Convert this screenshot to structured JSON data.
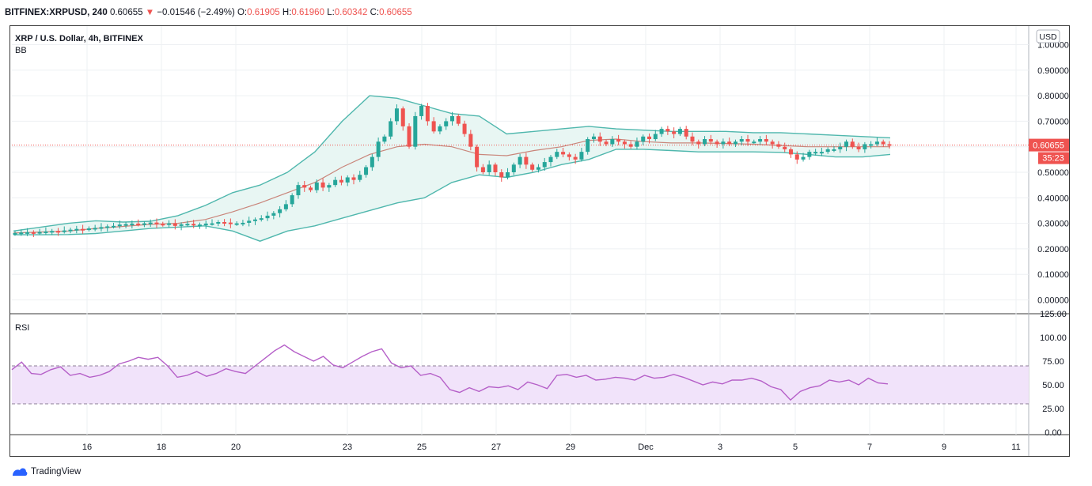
{
  "header": {
    "symbol": "BITFINEX:XRPUSD, 240",
    "last": "0.60655",
    "arrow": "▼",
    "change": "−0.01546 (−2.49%)",
    "o_label": "O:",
    "o_value": "0.61905",
    "h_label": "H:",
    "h_value": "0.61960",
    "l_label": "L:",
    "l_value": "0.60342",
    "c_label": "C:",
    "c_value": "0.60655"
  },
  "main_pane": {
    "title": "XRP / U.S. Dollar, 4h, BITFINEX",
    "indicator": "BB",
    "currency_button": "USD",
    "price_badge": "0.60655",
    "countdown_badge": "35:23"
  },
  "rsi_pane": {
    "title": "RSI"
  },
  "footer": {
    "brand": "TradingView"
  },
  "colors": {
    "up": "#26a69a",
    "down": "#ef5350",
    "bb_band": "#4fb7ad",
    "bb_fill": "#e8f6f3",
    "bb_basis": "#c9857a",
    "rsi_line": "#b55fc8",
    "rsi_band": "#f1e3fa"
  },
  "chart_data": [
    {
      "type": "candlestick",
      "title": "XRP / U.S. Dollar, 4h, BITFINEX",
      "indicator": "Bollinger Bands",
      "x_ticks": [
        "16",
        "18",
        "20",
        "23",
        "25",
        "27",
        "29",
        "Dec",
        "3",
        "5",
        "7",
        "9",
        "11"
      ],
      "y_ticks": [
        "0.00000",
        "0.10000",
        "0.20000",
        "0.30000",
        "0.40000",
        "0.50000",
        "0.60000",
        "0.70000",
        "0.80000",
        "0.90000",
        "1.00000"
      ],
      "ylim": [
        -0.02,
        1.06
      ],
      "grid": true,
      "last_price": 0.60655,
      "close": [
        0.262,
        0.264,
        0.265,
        0.263,
        0.266,
        0.268,
        0.27,
        0.268,
        0.272,
        0.275,
        0.278,
        0.276,
        0.28,
        0.282,
        0.285,
        0.288,
        0.29,
        0.295,
        0.297,
        0.299,
        0.296,
        0.3,
        0.303,
        0.298,
        0.295,
        0.3,
        0.29,
        0.296,
        0.298,
        0.292,
        0.295,
        0.299,
        0.3,
        0.305,
        0.303,
        0.298,
        0.3,
        0.302,
        0.31,
        0.315,
        0.32,
        0.33,
        0.34,
        0.355,
        0.375,
        0.41,
        0.45,
        0.44,
        0.43,
        0.46,
        0.44,
        0.45,
        0.47,
        0.46,
        0.48,
        0.47,
        0.49,
        0.52,
        0.56,
        0.62,
        0.64,
        0.7,
        0.75,
        0.68,
        0.6,
        0.72,
        0.76,
        0.7,
        0.66,
        0.68,
        0.7,
        0.72,
        0.69,
        0.65,
        0.6,
        0.52,
        0.5,
        0.53,
        0.5,
        0.48,
        0.5,
        0.53,
        0.56,
        0.53,
        0.51,
        0.52,
        0.54,
        0.56,
        0.58,
        0.57,
        0.56,
        0.55,
        0.58,
        0.63,
        0.64,
        0.62,
        0.61,
        0.63,
        0.62,
        0.61,
        0.6,
        0.62,
        0.64,
        0.63,
        0.65,
        0.67,
        0.66,
        0.65,
        0.67,
        0.64,
        0.62,
        0.61,
        0.63,
        0.62,
        0.61,
        0.62,
        0.61,
        0.62,
        0.63,
        0.62,
        0.62,
        0.63,
        0.62,
        0.61,
        0.6,
        0.59,
        0.57,
        0.55,
        0.56,
        0.58,
        0.58,
        0.58,
        0.59,
        0.59,
        0.6,
        0.62,
        0.6,
        0.59,
        0.61,
        0.61,
        0.62,
        0.61,
        0.607
      ],
      "bb_upper": [
        0.27,
        0.285,
        0.3,
        0.31,
        0.305,
        0.308,
        0.33,
        0.37,
        0.42,
        0.45,
        0.5,
        0.58,
        0.7,
        0.8,
        0.79,
        0.76,
        0.73,
        0.72,
        0.65,
        0.66,
        0.67,
        0.68,
        0.67,
        0.665,
        0.66,
        0.66,
        0.66,
        0.655,
        0.655,
        0.65,
        0.645,
        0.64,
        0.635
      ],
      "bb_basis": [
        0.262,
        0.266,
        0.27,
        0.28,
        0.288,
        0.296,
        0.3,
        0.315,
        0.345,
        0.38,
        0.42,
        0.46,
        0.52,
        0.57,
        0.6,
        0.61,
        0.6,
        0.57,
        0.565,
        0.585,
        0.6,
        0.625,
        0.63,
        0.62,
        0.615,
        0.615,
        0.613,
        0.61,
        0.605,
        0.6,
        0.6,
        0.6,
        0.6
      ],
      "bb_lower": [
        0.255,
        0.255,
        0.256,
        0.26,
        0.27,
        0.28,
        0.285,
        0.29,
        0.27,
        0.23,
        0.27,
        0.29,
        0.32,
        0.35,
        0.38,
        0.4,
        0.46,
        0.49,
        0.48,
        0.5,
        0.53,
        0.55,
        0.59,
        0.59,
        0.585,
        0.58,
        0.58,
        0.58,
        0.578,
        0.57,
        0.56,
        0.56,
        0.57
      ]
    },
    {
      "type": "line",
      "title": "RSI",
      "y_ticks": [
        "0.00",
        "25.00",
        "50.00",
        "75.00",
        "100.00",
        "125.00"
      ],
      "ylim": [
        0,
        125
      ],
      "band": [
        30,
        70
      ],
      "values": [
        66,
        74,
        62,
        61,
        66,
        69,
        60,
        62,
        58,
        60,
        64,
        72,
        75,
        79,
        77,
        79,
        70,
        58,
        60,
        64,
        59,
        62,
        67,
        64,
        62,
        70,
        78,
        86,
        92,
        85,
        80,
        75,
        80,
        71,
        68,
        74,
        80,
        85,
        88,
        73,
        68,
        70,
        60,
        62,
        58,
        45,
        42,
        47,
        43,
        48,
        47,
        49,
        45,
        53,
        50,
        46,
        60,
        61,
        58,
        60,
        55,
        56,
        58,
        57,
        55,
        60,
        57,
        58,
        61,
        58,
        54,
        50,
        53,
        51,
        55,
        55,
        57,
        54,
        48,
        45,
        34,
        43,
        47,
        49,
        55,
        53,
        55,
        50,
        57,
        52,
        51
      ]
    }
  ]
}
